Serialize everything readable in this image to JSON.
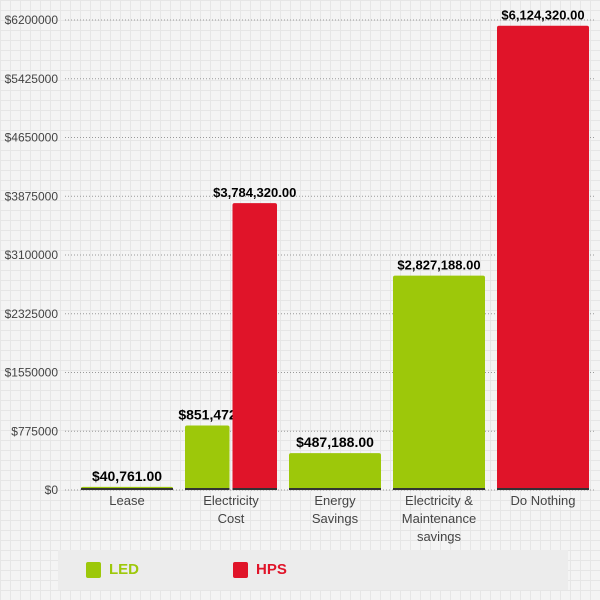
{
  "chart_data": {
    "type": "bar",
    "title": "",
    "xlabel": "",
    "ylabel": "",
    "ylim": [
      0,
      6200000
    ],
    "yticks": [
      "$0",
      "$775000",
      "$1550000",
      "$2325000",
      "$3100000",
      "$3875000",
      "$4650000",
      "$5425000",
      "$6200000"
    ],
    "ytick_values": [
      0,
      775000,
      1550000,
      2325000,
      3100000,
      3875000,
      4650000,
      5425000,
      6200000
    ],
    "grid": true,
    "legend_placement": "bottom",
    "categories": [
      [
        "Lease"
      ],
      [
        "Electricity",
        "Cost"
      ],
      [
        "Energy",
        "Savings"
      ],
      [
        "Electricity &",
        "Maintenance",
        "savings"
      ],
      [
        "Do Nothing"
      ]
    ],
    "series": [
      {
        "name": "LED",
        "color": "#9dc80a",
        "values": [
          40761,
          851472,
          487188,
          2827188,
          null
        ],
        "labels": [
          "$40,761.00",
          "$851,472.00",
          "$487,188.00",
          "$2,827,188.00",
          null
        ]
      },
      {
        "name": "HPS",
        "color": "#e01429",
        "values": [
          null,
          3784320,
          null,
          null,
          6124320
        ],
        "labels": [
          null,
          "$3,784,320.00",
          null,
          null,
          "$6,124,320.00"
        ]
      }
    ]
  }
}
